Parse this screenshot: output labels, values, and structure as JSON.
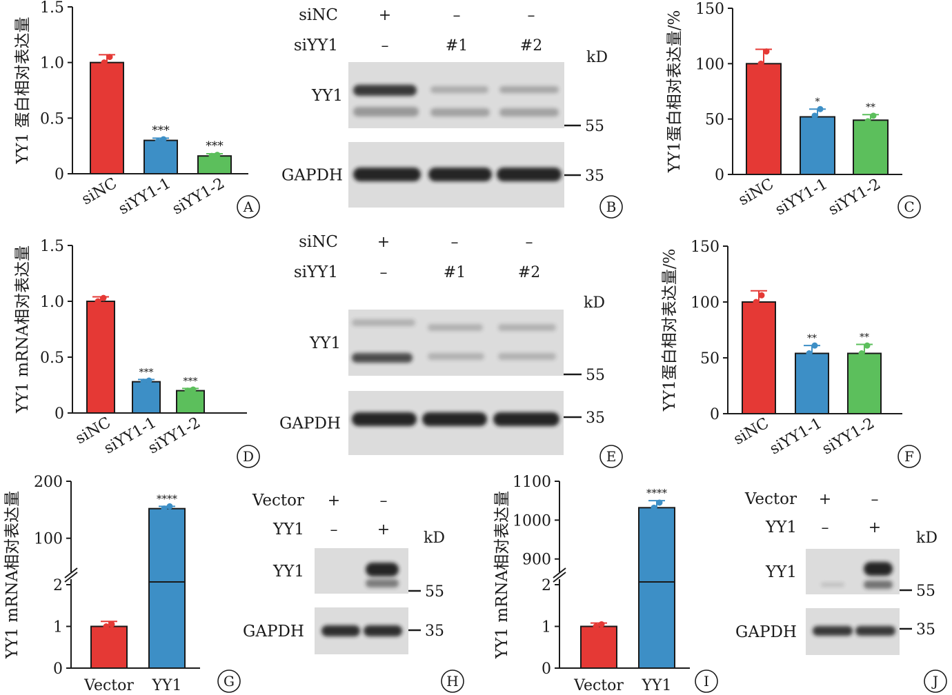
{
  "colors": {
    "sinc": "#e53935",
    "siyy1_1": "#3d8fc6",
    "siyy1_2": "#5cbf5c",
    "siyy1_2_dark": "#43a047",
    "blot_bg": "#dcdcdc",
    "band": "#1e1e1e"
  },
  "chart_data": [
    {
      "panel": "A",
      "type": "bar",
      "ylabel": "YY1 蛋白相对表达量",
      "categories": [
        "siNC",
        "siYY1-1",
        "siYY1-2"
      ],
      "values": [
        1.0,
        0.3,
        0.16
      ],
      "errors": [
        0.07,
        0.02,
        0.02
      ],
      "points": [
        [
          1.0,
          1.05
        ],
        [
          0.29,
          0.31
        ],
        [
          0.16,
          0.17
        ]
      ],
      "significance": [
        "",
        "***",
        "***"
      ],
      "ylim": [
        0,
        1.5
      ],
      "yticks": [
        "0",
        "0.5",
        "1.0",
        "1.5"
      ],
      "ytick_values": [
        0,
        0.5,
        1.0,
        1.5
      ]
    },
    {
      "panel": "C",
      "type": "bar",
      "ylabel": "YY1蛋白相对表达量/%",
      "categories": [
        "siNC",
        "siYY1-1",
        "siYY1-2"
      ],
      "values": [
        100,
        52,
        49
      ],
      "errors": [
        13,
        7,
        5
      ],
      "points": [
        [
          100,
          111
        ],
        [
          53,
          59
        ],
        [
          48,
          53
        ]
      ],
      "significance": [
        "",
        "*",
        "**"
      ],
      "ylim": [
        0,
        150
      ],
      "yticks": [
        "0",
        "50",
        "100",
        "150"
      ],
      "ytick_values": [
        0,
        50,
        100,
        150
      ]
    },
    {
      "panel": "D",
      "type": "bar",
      "ylabel": "YY1 mRNA相对表达量",
      "categories": [
        "siNC",
        "siYY1-1",
        "siYY1-2"
      ],
      "values": [
        1.0,
        0.28,
        0.2
      ],
      "errors": [
        0.04,
        0.02,
        0.02
      ],
      "points": [
        [
          1.0,
          1.03
        ],
        [
          0.28,
          0.29
        ],
        [
          0.2,
          0.21
        ]
      ],
      "significance": [
        "",
        "***",
        "***"
      ],
      "ylim": [
        0,
        1.5
      ],
      "yticks": [
        "0",
        "0.5",
        "1.0",
        "1.5"
      ],
      "ytick_values": [
        0,
        0.5,
        1.0,
        1.5
      ]
    },
    {
      "panel": "F",
      "type": "bar",
      "ylabel": "YY1蛋白相对表达量/%",
      "categories": [
        "siNC",
        "siYY1-1",
        "siYY1-2"
      ],
      "values": [
        100,
        54,
        54
      ],
      "errors": [
        10,
        7,
        8
      ],
      "points": [
        [
          100,
          106
        ],
        [
          54,
          61
        ],
        [
          54,
          61
        ]
      ],
      "significance": [
        "",
        "**",
        "**"
      ],
      "ylim": [
        0,
        150
      ],
      "yticks": [
        "0",
        "50",
        "100",
        "150"
      ],
      "ytick_values": [
        0,
        50,
        100,
        150
      ]
    },
    {
      "panel": "G",
      "type": "bar",
      "ylabel": "YY1 mRNA相对表达量",
      "categories": [
        "Vector",
        "YY1"
      ],
      "values": [
        1.0,
        152
      ],
      "errors": [
        0.12,
        4
      ],
      "points": [
        [
          1.0,
          1.05
        ],
        [
          152,
          156
        ]
      ],
      "significance": [
        "",
        "****"
      ],
      "broken_axis": {
        "lower": [
          0,
          2
        ],
        "upper": [
          50,
          200
        ]
      },
      "yticks": [
        "0",
        "1",
        "2",
        "100",
        "200"
      ],
      "ytick_values": [
        0,
        1,
        2,
        100,
        200
      ]
    },
    {
      "panel": "I",
      "type": "bar",
      "ylabel": "YY1 mRNA相对表达量",
      "categories": [
        "Vector",
        "YY1"
      ],
      "values": [
        1.0,
        1032
      ],
      "errors": [
        0.08,
        18
      ],
      "points": [
        [
          1.0,
          1.05
        ],
        [
          1032,
          1045
        ]
      ],
      "significance": [
        "",
        "****"
      ],
      "broken_axis": {
        "lower": [
          0,
          2
        ],
        "upper": [
          880,
          1100
        ]
      },
      "yticks": [
        "0",
        "1",
        "2",
        "900",
        "1000",
        "1100"
      ],
      "ytick_values": [
        0,
        1,
        2,
        900,
        1000,
        1100
      ]
    }
  ],
  "blots": [
    {
      "panel": "B",
      "rows": [
        {
          "label": "siNC",
          "cells": [
            "+",
            "–",
            "–"
          ]
        },
        {
          "label": "siYY1",
          "cells": [
            "–",
            "#1",
            "#2"
          ]
        }
      ],
      "kd_label": "kD",
      "bands": [
        {
          "label": "YY1",
          "marker": "55"
        },
        {
          "label": "GAPDH",
          "marker": "35"
        }
      ]
    },
    {
      "panel": "E",
      "rows": [
        {
          "label": "siNC",
          "cells": [
            "+",
            "–",
            "–"
          ]
        },
        {
          "label": "siYY1",
          "cells": [
            "–",
            "#1",
            "#2"
          ]
        }
      ],
      "kd_label": "kD",
      "bands": [
        {
          "label": "YY1",
          "marker": "55"
        },
        {
          "label": "GAPDH",
          "marker": "35"
        }
      ]
    },
    {
      "panel": "H",
      "rows": [
        {
          "label": "Vector",
          "cells": [
            "+",
            "–"
          ]
        },
        {
          "label": "YY1",
          "cells": [
            "–",
            "+"
          ]
        }
      ],
      "kd_label": "kD",
      "bands": [
        {
          "label": "YY1",
          "marker": "55"
        },
        {
          "label": "GAPDH",
          "marker": "35"
        }
      ]
    },
    {
      "panel": "J",
      "rows": [
        {
          "label": "Vector",
          "cells": [
            "+",
            "–"
          ]
        },
        {
          "label": "YY1",
          "cells": [
            "–",
            "+"
          ]
        }
      ],
      "kd_label": "kD",
      "bands": [
        {
          "label": "YY1",
          "marker": "55"
        },
        {
          "label": "GAPDH",
          "marker": "35"
        }
      ]
    }
  ]
}
